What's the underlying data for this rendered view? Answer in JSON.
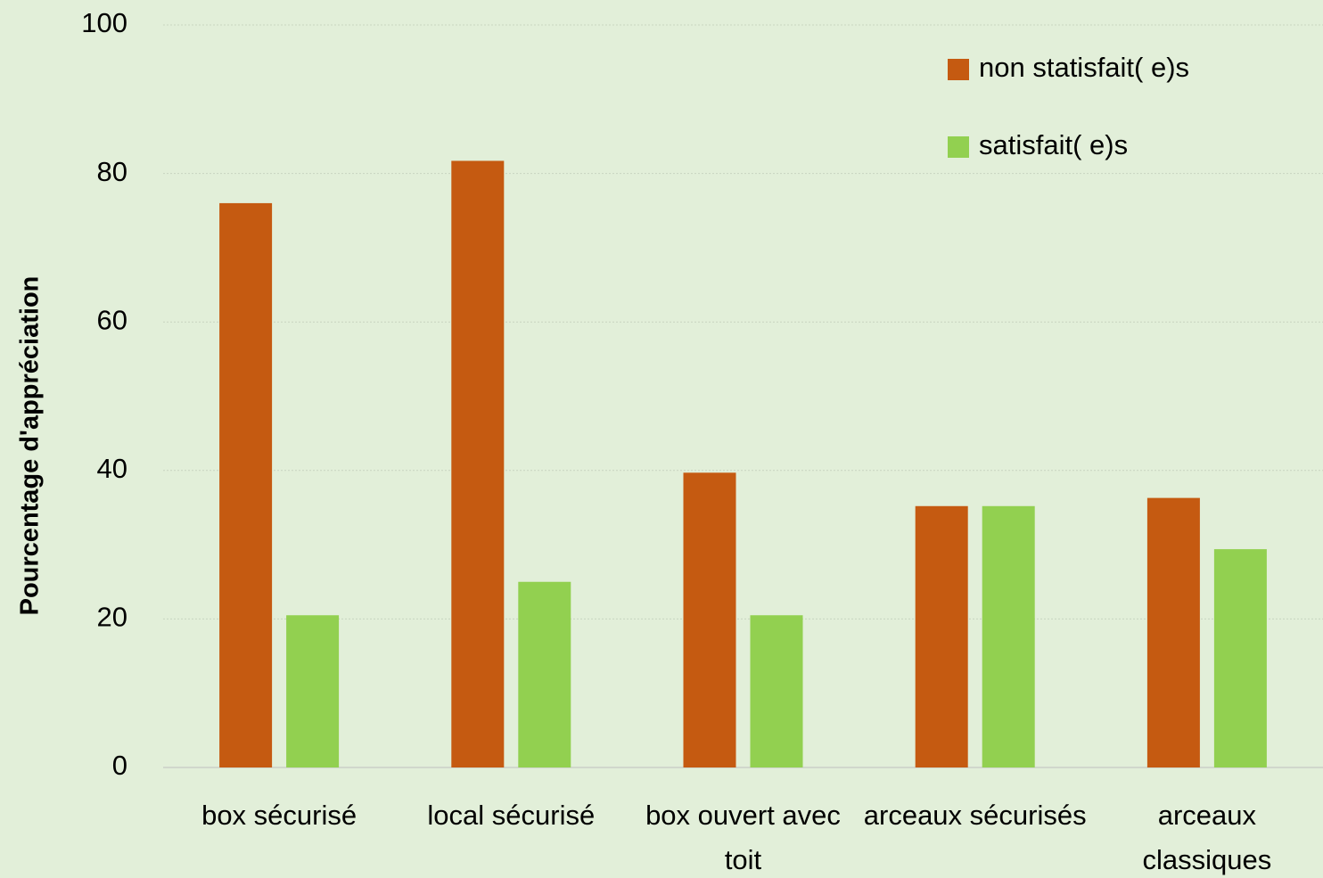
{
  "chart_data": {
    "type": "bar",
    "y_label": "Pourcentage d'appréciation",
    "categories": [
      "box sécurisé",
      "local sécurisé",
      "box ouvert avec toit",
      "arceaux sécurisés",
      "arceaux classiques"
    ],
    "series": [
      {
        "name": "non statisfait( e)s",
        "color": "#c55a11",
        "values": [
          76,
          81.7,
          39.7,
          35.2,
          36.3
        ]
      },
      {
        "name": "satisfait( e)s",
        "color": "#92d050",
        "values": [
          20.5,
          25,
          20.5,
          35.2,
          29.4
        ]
      }
    ],
    "ylim": [
      0,
      100
    ],
    "yticks": [
      0,
      20,
      40,
      60,
      80,
      100
    ],
    "grid": true,
    "legend": "top-right"
  }
}
